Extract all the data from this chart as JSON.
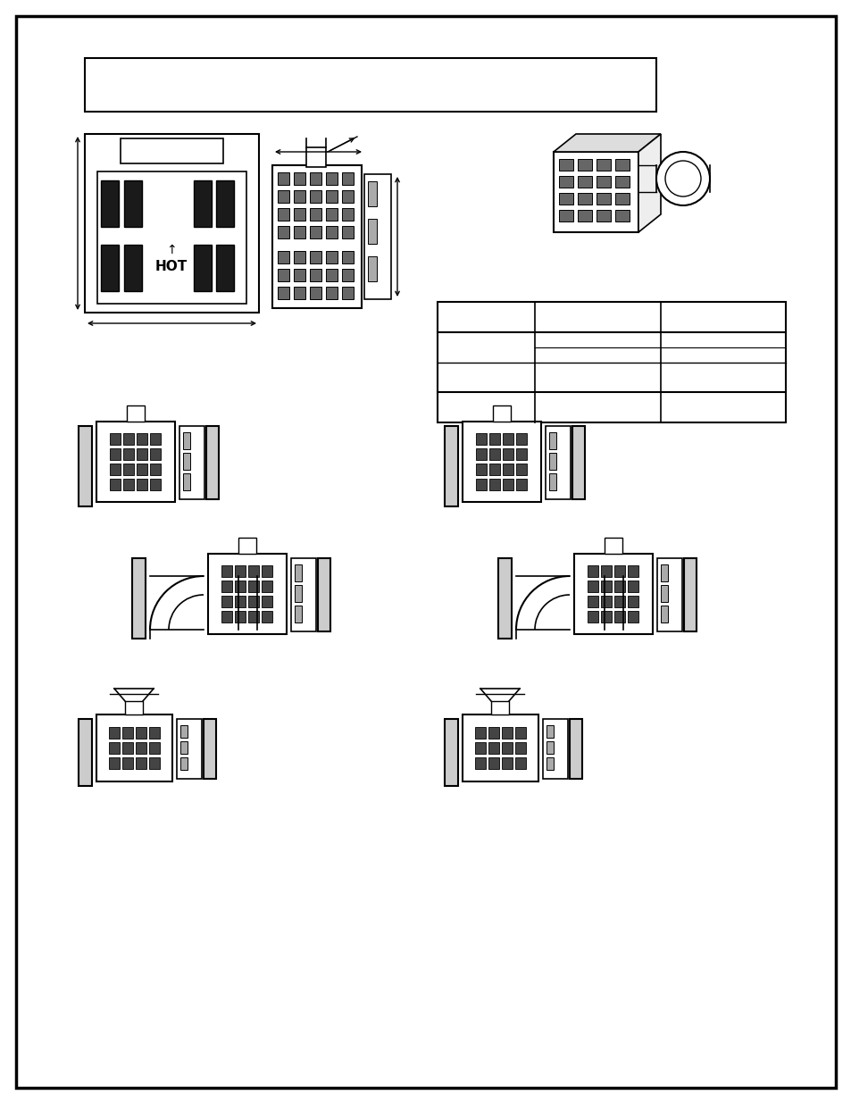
{
  "page_bg": "#ffffff",
  "border_color": "#000000",
  "title_box_text": "",
  "table_rows": 4,
  "table_cols": 3
}
